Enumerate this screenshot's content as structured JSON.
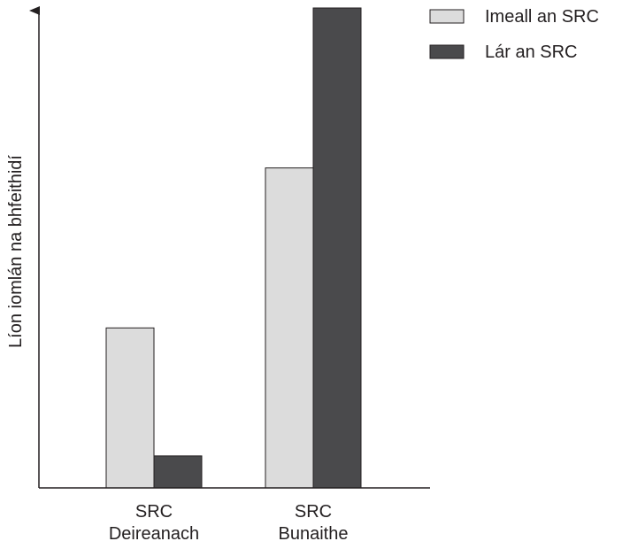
{
  "chart_data": {
    "type": "bar",
    "title": "",
    "xlabel": "",
    "ylabel": "Líon iomlán na bhfeithidí",
    "categories": [
      [
        "SRC",
        "Deireanach"
      ],
      [
        "SRC",
        "Bunaithe"
      ]
    ],
    "series": [
      {
        "name": "Imeall an SRC",
        "color": "#dcdcdc",
        "values": [
          100,
          200
        ]
      },
      {
        "name": "Lár an SRC",
        "color": "#4a4a4c",
        "values": [
          20,
          300
        ]
      }
    ],
    "ylim": [
      0,
      300
    ],
    "y_ticks": false,
    "grid": false,
    "legend_position": "top-right"
  }
}
